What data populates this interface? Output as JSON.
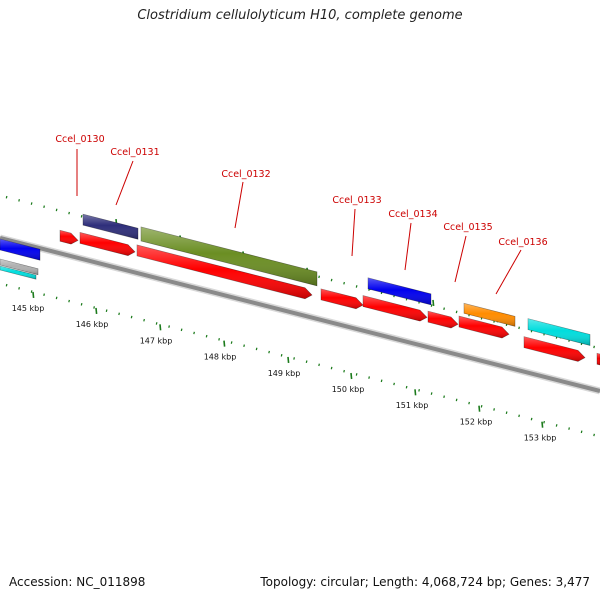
{
  "title": "Clostridium cellulolyticum H10, complete genome",
  "footer": {
    "accession": "Accession: NC_011898",
    "summary": "Topology: circular; Length: 4,068,724 bp; Genes: 3,477"
  },
  "colors": {
    "backbone": "#8a8a8a",
    "tick": "#1b7a1b",
    "label": "#cc0000"
  },
  "ruler": {
    "unit": "kbp",
    "labels": [
      "145 kbp",
      "146 kbp",
      "147 kbp",
      "148 kbp",
      "149 kbp",
      "150 kbp",
      "151 kbp",
      "152 kbp",
      "153 kbp"
    ]
  },
  "genes": [
    {
      "name": "Ccel_0130",
      "color": "#ff0000"
    },
    {
      "name": "Ccel_0131",
      "color": "#2e2e7a"
    },
    {
      "name": "Ccel_0132",
      "color": "#6b8e23"
    },
    {
      "name": "Ccel_0133",
      "color": "#ff0000"
    },
    {
      "name": "Ccel_0134",
      "color": "#0000ee"
    },
    {
      "name": "Ccel_0135",
      "color": "#ff8c00"
    },
    {
      "name": "Ccel_0136",
      "color": "#00dddd"
    }
  ]
}
